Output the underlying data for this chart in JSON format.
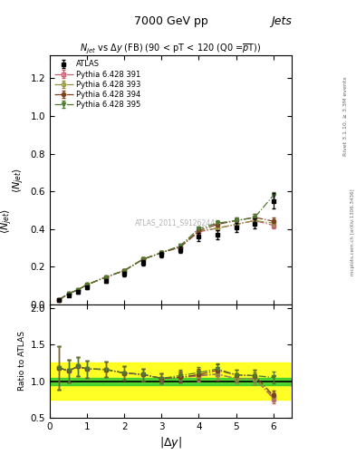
{
  "header_left": "7000 GeV pp",
  "header_right": "Jets",
  "plot_title": "$N_{jet}$ vs $\\Delta y$ (FB) (90 < pT < 120 (Q0 =$\\overline{p}$T))",
  "xlabel": "$|\\Delta y|$",
  "ylabel_main": "$\\langle N_{jet}\\rangle$",
  "ylabel_ratio": "Ratio to ATLAS",
  "right_label_top": "Rivet 3.1.10, ≥ 3.3M events",
  "right_label_bot": "mcplots.cern.ch [arXiv:1306.3436]",
  "watermark": "ATLAS_2011_S9126244",
  "atlas_x": [
    0.25,
    0.5,
    0.75,
    1.0,
    1.5,
    2.0,
    2.5,
    3.0,
    3.5,
    4.0,
    4.5,
    5.0,
    5.5,
    6.0
  ],
  "atlas_y": [
    0.022,
    0.05,
    0.065,
    0.09,
    0.125,
    0.162,
    0.22,
    0.265,
    0.29,
    0.36,
    0.37,
    0.41,
    0.43,
    0.55
  ],
  "atlas_yerr": [
    0.005,
    0.006,
    0.006,
    0.008,
    0.01,
    0.012,
    0.014,
    0.016,
    0.018,
    0.022,
    0.022,
    0.025,
    0.028,
    0.04
  ],
  "py391_y": [
    0.026,
    0.057,
    0.078,
    0.105,
    0.145,
    0.18,
    0.24,
    0.275,
    0.305,
    0.385,
    0.405,
    0.425,
    0.445,
    0.42
  ],
  "py393_y": [
    0.026,
    0.057,
    0.078,
    0.105,
    0.145,
    0.18,
    0.24,
    0.275,
    0.305,
    0.39,
    0.405,
    0.425,
    0.445,
    0.432
  ],
  "py394_y": [
    0.026,
    0.057,
    0.078,
    0.105,
    0.145,
    0.18,
    0.24,
    0.275,
    0.305,
    0.392,
    0.425,
    0.445,
    0.462,
    0.442
  ],
  "py395_y": [
    0.026,
    0.057,
    0.078,
    0.105,
    0.145,
    0.18,
    0.24,
    0.275,
    0.312,
    0.402,
    0.432,
    0.445,
    0.462,
    0.578
  ],
  "py391_yerr": [
    0.003,
    0.004,
    0.004,
    0.005,
    0.006,
    0.007,
    0.008,
    0.009,
    0.01,
    0.012,
    0.013,
    0.015,
    0.017,
    0.018
  ],
  "py393_yerr": [
    0.003,
    0.004,
    0.004,
    0.005,
    0.006,
    0.007,
    0.008,
    0.009,
    0.01,
    0.012,
    0.013,
    0.015,
    0.017,
    0.018
  ],
  "py394_yerr": [
    0.003,
    0.004,
    0.004,
    0.005,
    0.006,
    0.007,
    0.008,
    0.009,
    0.01,
    0.012,
    0.013,
    0.015,
    0.017,
    0.018
  ],
  "py395_yerr": [
    0.003,
    0.004,
    0.004,
    0.005,
    0.006,
    0.007,
    0.008,
    0.009,
    0.01,
    0.012,
    0.013,
    0.015,
    0.017,
    0.02
  ],
  "c391": "#c06070",
  "c393": "#909040",
  "c394": "#7a4020",
  "c395": "#507830",
  "green_band": [
    0.95,
    1.05
  ],
  "yellow_band": [
    0.75,
    1.25
  ],
  "ylim_main": [
    0.0,
    1.32
  ],
  "ylim_ratio": [
    0.5,
    2.05
  ],
  "xlim": [
    0.0,
    6.5
  ],
  "yticks_main": [
    0.0,
    0.2,
    0.4,
    0.6,
    0.8,
    1.0,
    1.2
  ],
  "yticks_ratio": [
    0.5,
    1.0,
    1.5,
    2.0
  ],
  "xticks": [
    0,
    1,
    2,
    3,
    4,
    5,
    6
  ]
}
